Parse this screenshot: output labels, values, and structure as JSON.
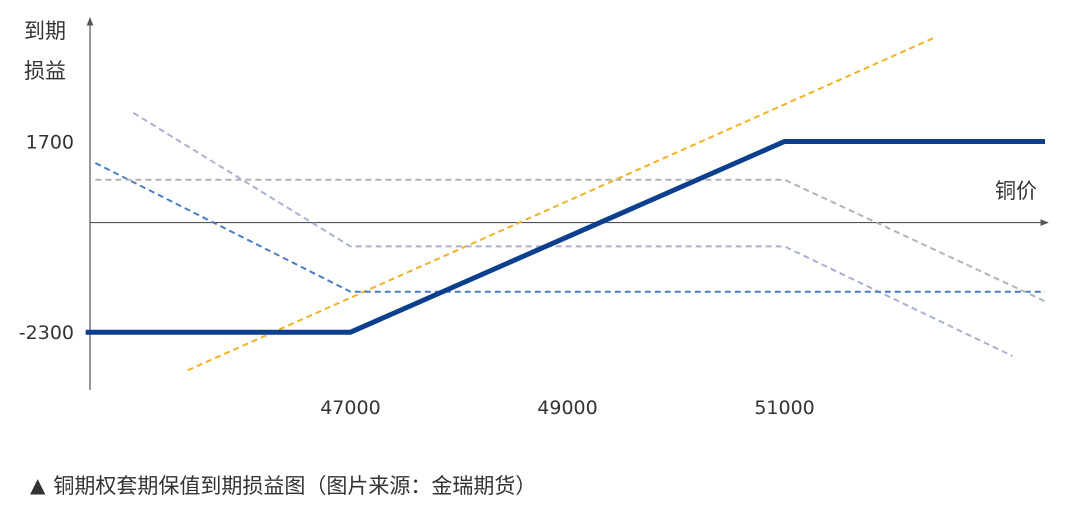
{
  "chart_data": {
    "type": "line",
    "xlabel": "铜价",
    "ylabel_line1": "到期",
    "ylabel_line2": "损益",
    "xlim": [
      44600,
      53400
    ],
    "ylim": [
      -3450,
      4250
    ],
    "x_ticks": [
      {
        "value": 47000,
        "label": "47000"
      },
      {
        "value": 49000,
        "label": "49000"
      },
      {
        "value": 51000,
        "label": "51000"
      }
    ],
    "y_ticks": [
      {
        "value": 1700,
        "label": "1700"
      },
      {
        "value": -2300,
        "label": "-2300"
      }
    ],
    "series": [
      {
        "style": "dashed",
        "color": "#f0b323",
        "width": 2,
        "points": [
          [
            45500,
            -3100
          ],
          [
            52400,
            3900
          ]
        ]
      },
      {
        "style": "dashed",
        "color": "#aab0d0",
        "width": 2,
        "points": [
          [
            45000,
            2300
          ],
          [
            47000,
            -500
          ],
          [
            51000,
            -500
          ],
          [
            53100,
            -2800
          ]
        ]
      },
      {
        "style": "dashed",
        "color": "#4a7ec4",
        "width": 2,
        "points": [
          [
            44650,
            1250
          ],
          [
            47000,
            -1450
          ],
          [
            53400,
            -1450
          ]
        ]
      },
      {
        "style": "dashed",
        "color": "#b4b4b4",
        "width": 2,
        "points": [
          [
            44650,
            900
          ],
          [
            51000,
            900
          ],
          [
            53400,
            -1650
          ]
        ]
      },
      {
        "style": "solid",
        "color": "#0d3f8f",
        "width": 5,
        "points": [
          [
            44560,
            -2300
          ],
          [
            47000,
            -2300
          ],
          [
            51000,
            1700
          ],
          [
            53400,
            1700
          ]
        ]
      }
    ]
  },
  "caption": {
    "arrow": "▲",
    "text": "铜期权套期保值到期损益图（图片来源：金瑞期货）"
  }
}
